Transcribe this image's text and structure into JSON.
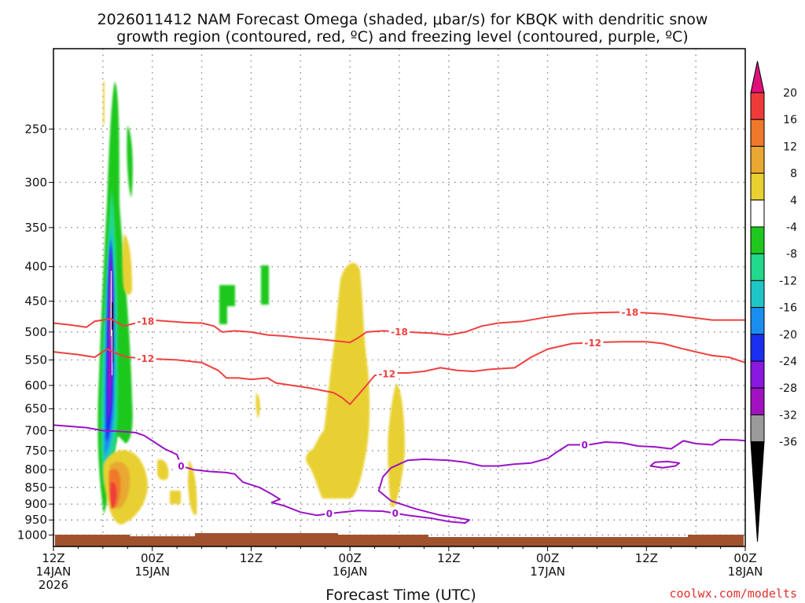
{
  "chart_data": {
    "type": "heatmap",
    "title_line1": "2026011412 NAM Forecast Omega (shaded, μbar/s) for KBQK with dendritic snow",
    "title_line2": "growth region (contoured, red, ºC) and freezing level (contoured, purple, ºC)",
    "xlabel": "Forecast Time (UTC)",
    "credit": "coolwx.com/modelts",
    "x_unit": "forecast hour",
    "xlim": [
      0,
      84
    ],
    "y_unit": "hPa",
    "ylim": [
      1040,
      190
    ],
    "y_ticks": [
      250,
      300,
      350,
      400,
      450,
      500,
      550,
      600,
      650,
      700,
      750,
      800,
      850,
      900,
      950,
      1000
    ],
    "x_ticks": [
      {
        "hour": 0,
        "l1": "12Z",
        "l2": "14JAN",
        "l3": "2026"
      },
      {
        "hour": 12,
        "l1": "00Z",
        "l2": "15JAN",
        "l3": ""
      },
      {
        "hour": 24,
        "l1": "12Z",
        "l2": "",
        "l3": ""
      },
      {
        "hour": 36,
        "l1": "00Z",
        "l2": "16JAN",
        "l3": ""
      },
      {
        "hour": 48,
        "l1": "12Z",
        "l2": "",
        "l3": ""
      },
      {
        "hour": 60,
        "l1": "00Z",
        "l2": "17JAN",
        "l3": ""
      },
      {
        "hour": 72,
        "l1": "12Z",
        "l2": "",
        "l3": ""
      },
      {
        "hour": 84,
        "l1": "00Z",
        "l2": "18JAN",
        "l3": ""
      }
    ],
    "colorbar": {
      "labels": [
        "20",
        "16",
        "12",
        "8",
        "4",
        "-4",
        "-8",
        "-12",
        "-16",
        "-20",
        "-24",
        "-28",
        "-32",
        "-36"
      ],
      "bins": [
        {
          "color": "#f03a3a"
        },
        {
          "color": "#f0782a"
        },
        {
          "color": "#e8a832"
        },
        {
          "color": "#e8d032"
        },
        {
          "color": "#ffffff"
        },
        {
          "color": "#1ec81e"
        },
        {
          "color": "#22d88a"
        },
        {
          "color": "#1fc6c6"
        },
        {
          "color": "#1a8ef0"
        },
        {
          "color": "#1a2ef0"
        },
        {
          "color": "#8a18e0"
        },
        {
          "color": "#a012c0"
        },
        {
          "color": "#9a9a9a"
        }
      ],
      "top_color": "#e0107a",
      "bottom_color": "#000000"
    },
    "contours": [
      {
        "name": "dgz-minus18",
        "label": "-18",
        "color": "#f04040",
        "points": [
          [
            0,
            485
          ],
          [
            2,
            488
          ],
          [
            4,
            492
          ],
          [
            5,
            482
          ],
          [
            7,
            478
          ],
          [
            8.5,
            490
          ],
          [
            10,
            485
          ],
          [
            12,
            480
          ],
          [
            14,
            482
          ],
          [
            16,
            484
          ],
          [
            18,
            485
          ],
          [
            19.5,
            490
          ],
          [
            20.5,
            500
          ],
          [
            22,
            498
          ],
          [
            24,
            500
          ],
          [
            26,
            505
          ],
          [
            28,
            507
          ],
          [
            30,
            510
          ],
          [
            32,
            512
          ],
          [
            34,
            515
          ],
          [
            36,
            518
          ],
          [
            37,
            510
          ],
          [
            38,
            500
          ],
          [
            40,
            498
          ],
          [
            43,
            500
          ],
          [
            46,
            502
          ],
          [
            48,
            505
          ],
          [
            50,
            500
          ],
          [
            52,
            490
          ],
          [
            54,
            485
          ],
          [
            57,
            482
          ],
          [
            60,
            475
          ],
          [
            63,
            470
          ],
          [
            66,
            468
          ],
          [
            70,
            467
          ],
          [
            74,
            470
          ],
          [
            77,
            475
          ],
          [
            80,
            480
          ],
          [
            84,
            480
          ]
        ],
        "label_hours": [
          11.2,
          42,
          70
        ]
      },
      {
        "name": "dgz-minus12",
        "label": "-12",
        "color": "#f04040",
        "points": [
          [
            0,
            535
          ],
          [
            3,
            540
          ],
          [
            5,
            545
          ],
          [
            6.5,
            530
          ],
          [
            8,
            540
          ],
          [
            9,
            545
          ],
          [
            12,
            548
          ],
          [
            15,
            550
          ],
          [
            18,
            555
          ],
          [
            20,
            570
          ],
          [
            21,
            585
          ],
          [
            22.5,
            585
          ],
          [
            24,
            588
          ],
          [
            26,
            585
          ],
          [
            27,
            595
          ],
          [
            29,
            600
          ],
          [
            31,
            605
          ],
          [
            34,
            615
          ],
          [
            35,
            625
          ],
          [
            36,
            640
          ],
          [
            37,
            620
          ],
          [
            38,
            600
          ],
          [
            39,
            580
          ],
          [
            41,
            575
          ],
          [
            43,
            575
          ],
          [
            45,
            572
          ],
          [
            47,
            565
          ],
          [
            49,
            570
          ],
          [
            51,
            572
          ],
          [
            53,
            568
          ],
          [
            56,
            565
          ],
          [
            58,
            545
          ],
          [
            60,
            530
          ],
          [
            63,
            520
          ],
          [
            66,
            518
          ],
          [
            69,
            517
          ],
          [
            72,
            517
          ],
          [
            74,
            520
          ],
          [
            76,
            528
          ],
          [
            78,
            535
          ],
          [
            80,
            542
          ],
          [
            82,
            545
          ],
          [
            84,
            555
          ]
        ],
        "label_hours": [
          11.2,
          40.5,
          65.5
        ]
      },
      {
        "name": "freezing-level-0",
        "label": "0",
        "color": "#9a12c6",
        "points": [
          [
            0,
            687
          ],
          [
            2,
            690
          ],
          [
            4,
            693
          ],
          [
            6,
            700
          ],
          [
            8,
            702
          ],
          [
            10,
            705
          ],
          [
            11,
            712
          ],
          [
            12,
            725
          ],
          [
            13.5,
            745
          ],
          [
            15,
            760
          ],
          [
            15.5,
            790
          ],
          [
            17,
            800
          ],
          [
            19,
            805
          ],
          [
            21,
            808
          ],
          [
            22,
            812
          ],
          [
            23,
            835
          ],
          [
            25,
            850
          ],
          [
            26.5,
            870
          ],
          [
            27.5,
            885
          ],
          [
            26.5,
            895
          ],
          [
            28,
            905
          ],
          [
            30,
            925
          ],
          [
            32,
            935
          ],
          [
            34,
            928
          ],
          [
            37,
            920
          ],
          [
            40,
            922
          ],
          [
            43,
            935
          ],
          [
            46,
            945
          ],
          [
            48,
            955
          ],
          [
            50,
            960
          ],
          [
            50.5,
            950
          ],
          [
            49,
            943
          ],
          [
            47,
            935
          ],
          [
            44,
            915
          ],
          [
            41,
            890
          ],
          [
            39.5,
            860
          ],
          [
            40,
            820
          ],
          [
            41,
            795
          ],
          [
            43,
            775
          ],
          [
            45,
            772
          ],
          [
            48,
            775
          ],
          [
            50,
            780
          ],
          [
            52,
            790
          ],
          [
            54,
            790
          ],
          [
            56,
            785
          ],
          [
            58,
            782
          ],
          [
            60,
            770
          ],
          [
            61,
            755
          ],
          [
            62.5,
            735
          ],
          [
            65,
            735
          ],
          [
            67,
            728
          ],
          [
            69,
            730
          ],
          [
            71,
            738
          ],
          [
            73,
            740
          ],
          [
            75,
            745
          ],
          [
            76.5,
            725
          ],
          [
            78,
            732
          ],
          [
            80,
            735
          ],
          [
            81,
            722
          ],
          [
            83,
            723
          ],
          [
            84,
            725
          ]
        ],
        "label_hours": [
          15.5,
          33.5,
          41.5,
          64.5
        ]
      },
      {
        "name": "freezing-level-closed-0",
        "label": "",
        "color": "#9a12c6",
        "points": [
          [
            73,
            780
          ],
          [
            74.5,
            778
          ],
          [
            76,
            782
          ],
          [
            75.5,
            790
          ],
          [
            74,
            795
          ],
          [
            72.5,
            790
          ],
          [
            73,
            780
          ]
        ],
        "label_hours": []
      }
    ]
  }
}
